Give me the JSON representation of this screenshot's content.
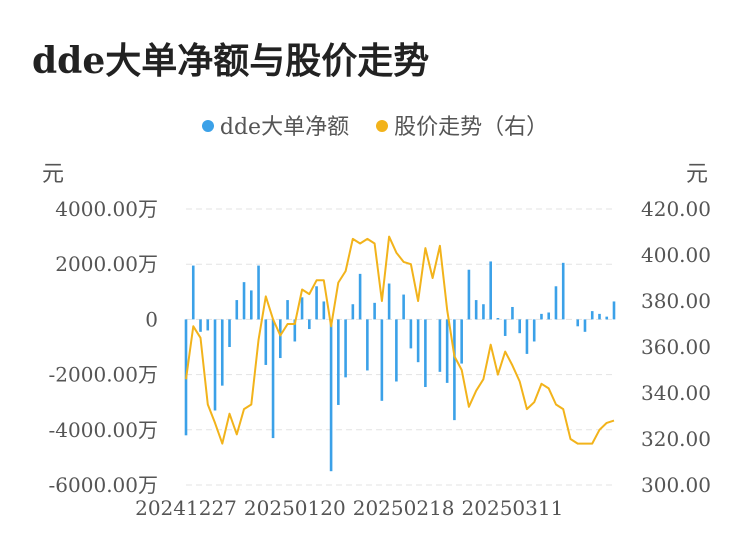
{
  "title": "dde大单净额与股价走势",
  "legend": [
    {
      "name": "dde大单净额",
      "color": "#3ba1e8"
    },
    {
      "name": "股价走势（右）",
      "color": "#f2b31b"
    }
  ],
  "units": {
    "left": "元",
    "right": "元"
  },
  "chart_data": {
    "type": "bar+line",
    "title": "dde大单净额与股价走势",
    "x_tick_labels": [
      "20241227",
      "20250120",
      "20250218",
      "20250311"
    ],
    "x_tick_indices": [
      0,
      15,
      30,
      45
    ],
    "y_left": {
      "ticks": [
        "4000.00万",
        "2000.00万",
        "0",
        "-2000.00万",
        "-4000.00万",
        "-6000.00万"
      ],
      "range": [
        -6000,
        4000
      ],
      "unit": "万元"
    },
    "y_right": {
      "ticks": [
        "420.00",
        "400.00",
        "380.00",
        "360.00",
        "340.00",
        "320.00",
        "300.00"
      ],
      "range": [
        300,
        420
      ]
    },
    "grid": true,
    "series": [
      {
        "name": "dde大单净额",
        "type": "bar",
        "color": "#3ba1e8",
        "values": [
          -4200,
          1950,
          -450,
          -400,
          -3300,
          -2400,
          -1000,
          700,
          1350,
          1050,
          1950,
          -1650,
          -4300,
          -1400,
          700,
          -800,
          800,
          -350,
          1200,
          650,
          -5500,
          -3100,
          -2100,
          550,
          1650,
          -1850,
          600,
          -2950,
          1300,
          -2250,
          900,
          -1050,
          -1550,
          -2450,
          0,
          -1900,
          -2300,
          -3650,
          -1600,
          1800,
          700,
          550,
          2100,
          50,
          -600,
          450,
          -500,
          -1250,
          -800,
          200,
          250,
          1200,
          2050,
          0,
          -250,
          -450,
          300,
          200,
          100,
          650
        ]
      },
      {
        "name": "股价走势（右）",
        "type": "line",
        "color": "#f2b31b",
        "values": [
          346,
          369,
          364,
          335,
          327,
          318,
          331,
          322,
          333,
          335,
          363,
          382,
          372,
          365,
          370,
          370,
          385,
          383,
          389,
          389,
          369,
          388,
          393,
          407,
          405,
          407,
          405,
          380,
          408,
          401,
          397,
          396,
          380,
          403,
          390,
          404,
          376,
          356,
          350,
          334,
          341,
          346,
          361,
          348,
          358,
          352,
          345,
          333,
          336,
          344,
          342,
          335,
          333,
          320,
          318,
          318,
          318,
          324,
          327,
          328
        ]
      }
    ]
  }
}
